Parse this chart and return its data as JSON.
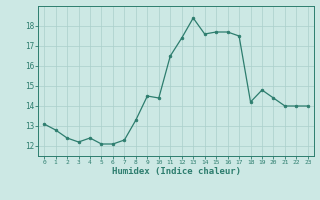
{
  "x": [
    0,
    1,
    2,
    3,
    4,
    5,
    6,
    7,
    8,
    9,
    10,
    11,
    12,
    13,
    14,
    15,
    16,
    17,
    18,
    19,
    20,
    21,
    22,
    23
  ],
  "y": [
    13.1,
    12.8,
    12.4,
    12.2,
    12.4,
    12.1,
    12.1,
    12.3,
    13.3,
    14.5,
    14.4,
    16.5,
    17.4,
    18.4,
    17.6,
    17.7,
    17.7,
    17.5,
    14.2,
    14.8,
    14.4,
    14.0,
    14.0,
    14.0
  ],
  "xlabel": "Humidex (Indice chaleur)",
  "ylim": [
    11.5,
    19.0
  ],
  "xlim": [
    -0.5,
    23.5
  ],
  "yticks": [
    12,
    13,
    14,
    15,
    16,
    17,
    18
  ],
  "xticks": [
    0,
    1,
    2,
    3,
    4,
    5,
    6,
    7,
    8,
    9,
    10,
    11,
    12,
    13,
    14,
    15,
    16,
    17,
    18,
    19,
    20,
    21,
    22,
    23
  ],
  "line_color": "#2d7d6e",
  "marker_color": "#2d7d6e",
  "bg_color": "#cce8e4",
  "grid_color": "#aacfcb",
  "label_color": "#2d7d6e",
  "tick_color": "#2d7d6e",
  "spine_color": "#2d7d6e"
}
